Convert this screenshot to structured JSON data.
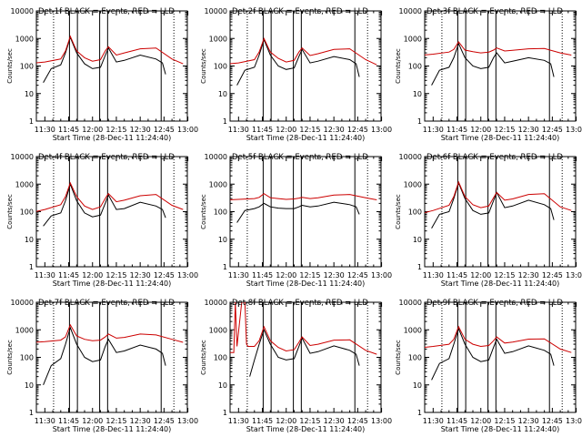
{
  "chart_data": [
    {
      "type": "line",
      "title": "Det 1f BLACK =,Events, RED = LLD",
      "xlabel": "Start Time (28-Dec-11 11:24:40)",
      "ylabel": "Counts/sec",
      "y_scale": "log",
      "ylim": [
        1,
        10000
      ],
      "x_ticks": [
        "11:30",
        "11:45",
        "12:00",
        "12:15",
        "12:30",
        "12:45",
        "13:00"
      ],
      "y_ticks": [
        "1",
        "10",
        "100",
        "1000",
        "10000"
      ],
      "series": [
        {
          "name": "Events",
          "color": "#000000",
          "x": [
            "11:29",
            "11:34",
            "11:40",
            "11:43",
            "11:46",
            "11:50",
            "11:55",
            "12:00",
            "12:05",
            "12:08",
            "12:10",
            "12:15",
            "12:20",
            "12:30",
            "12:40",
            "12:44",
            "12:46"
          ],
          "values": [
            25,
            80,
            110,
            300,
            1100,
            300,
            120,
            80,
            90,
            240,
            450,
            140,
            160,
            250,
            180,
            130,
            50
          ]
        },
        {
          "name": "LLD",
          "color": "#cc0000",
          "x": [
            "11:24",
            "11:30",
            "11:40",
            "11:43",
            "11:46",
            "11:50",
            "11:55",
            "12:00",
            "12:05",
            "12:08",
            "12:10",
            "12:15",
            "12:20",
            "12:30",
            "12:40",
            "12:50",
            "12:57"
          ],
          "values": [
            130,
            140,
            180,
            350,
            1200,
            350,
            200,
            150,
            170,
            350,
            500,
            250,
            300,
            420,
            450,
            180,
            120
          ]
        }
      ]
    },
    {
      "type": "line",
      "title": "Det 2f BLACK =,Events, RED = LLD",
      "xlabel": "Start Time (28-Dec-11 11:24:40)",
      "ylabel": "Counts/sec",
      "y_scale": "log",
      "ylim": [
        1,
        10000
      ],
      "x_ticks": [
        "11:30",
        "11:45",
        "12:00",
        "12:15",
        "12:30",
        "12:45",
        "13:00"
      ],
      "y_ticks": [
        "1",
        "10",
        "100",
        "1000",
        "10000"
      ],
      "series": [
        {
          "name": "Events",
          "color": "#000000",
          "x": [
            "11:29",
            "11:34",
            "11:40",
            "11:43",
            "11:46",
            "11:50",
            "11:55",
            "12:00",
            "12:05",
            "12:08",
            "12:10",
            "12:15",
            "12:20",
            "12:30",
            "12:40",
            "12:44",
            "12:46"
          ],
          "values": [
            20,
            70,
            90,
            250,
            900,
            250,
            100,
            75,
            85,
            220,
            400,
            130,
            150,
            220,
            170,
            120,
            40
          ]
        },
        {
          "name": "LLD",
          "color": "#cc0000",
          "x": [
            "11:24",
            "11:30",
            "11:40",
            "11:43",
            "11:46",
            "11:50",
            "11:55",
            "12:00",
            "12:05",
            "12:08",
            "12:10",
            "12:15",
            "12:20",
            "12:30",
            "12:40",
            "12:50",
            "12:57"
          ],
          "values": [
            120,
            130,
            170,
            320,
            1000,
            320,
            190,
            140,
            160,
            320,
            450,
            240,
            280,
            400,
            420,
            170,
            110
          ]
        }
      ]
    },
    {
      "type": "line",
      "title": "Det 3f BLACK =,Events, RED = LLD",
      "xlabel": "Start Time (28-Dec-11 11:24:40)",
      "ylabel": "Counts/sec",
      "y_scale": "log",
      "ylim": [
        1,
        10000
      ],
      "x_ticks": [
        "11:30",
        "11:45",
        "12:00",
        "12:15",
        "12:30",
        "12:45",
        "13:00"
      ],
      "y_ticks": [
        "1",
        "10",
        "100",
        "1000",
        "10000"
      ],
      "series": [
        {
          "name": "Events",
          "color": "#000000",
          "x": [
            "11:29",
            "11:34",
            "11:40",
            "11:43",
            "11:46",
            "11:50",
            "11:55",
            "12:00",
            "12:05",
            "12:08",
            "12:10",
            "12:15",
            "12:20",
            "12:30",
            "12:40",
            "12:44",
            "12:46"
          ],
          "values": [
            20,
            70,
            90,
            200,
            650,
            200,
            100,
            80,
            90,
            200,
            300,
            130,
            150,
            200,
            160,
            120,
            40
          ]
        },
        {
          "name": "LLD",
          "color": "#cc0000",
          "x": [
            "11:24",
            "11:30",
            "11:40",
            "11:43",
            "11:46",
            "11:50",
            "11:55",
            "12:00",
            "12:05",
            "12:08",
            "12:10",
            "12:15",
            "12:20",
            "12:30",
            "12:40",
            "12:50",
            "12:57"
          ],
          "values": [
            250,
            270,
            320,
            400,
            750,
            380,
            330,
            300,
            320,
            380,
            450,
            350,
            370,
            420,
            430,
            300,
            250
          ]
        }
      ]
    },
    {
      "type": "line",
      "title": "Det 4f BLACK =,Events, RED = LLD",
      "xlabel": "Start Time (28-Dec-11 11:24:40)",
      "ylabel": "Counts/sec",
      "y_scale": "log",
      "ylim": [
        1,
        10000
      ],
      "x_ticks": [
        "11:30",
        "11:45",
        "12:00",
        "12:15",
        "12:30",
        "12:45",
        "13:00"
      ],
      "y_ticks": [
        "1",
        "10",
        "100",
        "1000",
        "10000"
      ],
      "series": [
        {
          "name": "Events",
          "color": "#000000",
          "x": [
            "11:29",
            "11:34",
            "11:40",
            "11:43",
            "11:46",
            "11:50",
            "11:55",
            "12:00",
            "12:05",
            "12:08",
            "12:10",
            "12:15",
            "12:20",
            "12:30",
            "12:40",
            "12:44",
            "12:46"
          ],
          "values": [
            30,
            70,
            90,
            250,
            1000,
            250,
            90,
            65,
            75,
            200,
            400,
            120,
            130,
            220,
            160,
            120,
            60
          ]
        },
        {
          "name": "LLD",
          "color": "#cc0000",
          "x": [
            "11:24",
            "11:30",
            "11:40",
            "11:43",
            "11:46",
            "11:50",
            "11:55",
            "12:00",
            "12:05",
            "12:08",
            "12:10",
            "12:15",
            "12:20",
            "12:30",
            "12:40",
            "12:50",
            "12:57"
          ],
          "values": [
            100,
            120,
            180,
            350,
            1100,
            350,
            160,
            120,
            150,
            300,
            450,
            230,
            260,
            380,
            420,
            170,
            120
          ]
        }
      ]
    },
    {
      "type": "line",
      "title": "Det 5f BLACK =,Events, RED = LLD",
      "xlabel": "Start Time (28-Dec-11 11:24:40)",
      "ylabel": "Counts/sec",
      "y_scale": "log",
      "ylim": [
        1,
        10000
      ],
      "x_ticks": [
        "11:30",
        "11:45",
        "12:00",
        "12:15",
        "12:30",
        "12:45",
        "13:00"
      ],
      "y_ticks": [
        "1",
        "10",
        "100",
        "1000",
        "10000"
      ],
      "series": [
        {
          "name": "Events",
          "color": "#000000",
          "x": [
            "11:29",
            "11:34",
            "11:40",
            "11:43",
            "11:46",
            "11:50",
            "11:55",
            "12:00",
            "12:05",
            "12:08",
            "12:10",
            "12:15",
            "12:20",
            "12:30",
            "12:40",
            "12:44",
            "12:46"
          ],
          "values": [
            40,
            110,
            130,
            150,
            200,
            150,
            135,
            130,
            130,
            150,
            170,
            150,
            160,
            220,
            180,
            150,
            80
          ]
        },
        {
          "name": "LLD",
          "color": "#cc0000",
          "x": [
            "11:24",
            "11:30",
            "11:40",
            "11:43",
            "11:46",
            "11:50",
            "11:55",
            "12:00",
            "12:05",
            "12:08",
            "12:10",
            "12:15",
            "12:20",
            "12:30",
            "12:40",
            "12:50",
            "12:57"
          ],
          "values": [
            270,
            280,
            300,
            330,
            450,
            320,
            300,
            280,
            290,
            310,
            330,
            300,
            320,
            400,
            420,
            320,
            270
          ]
        }
      ]
    },
    {
      "type": "line",
      "title": "Det 6f BLACK =,Events, RED = LLD",
      "xlabel": "Start Time (28-Dec-11 11:24:40)",
      "ylabel": "Counts/sec",
      "y_scale": "log",
      "ylim": [
        1,
        10000
      ],
      "x_ticks": [
        "11:30",
        "11:45",
        "12:00",
        "12:15",
        "12:30",
        "12:45",
        "13:00"
      ],
      "y_ticks": [
        "1",
        "10",
        "100",
        "1000",
        "10000"
      ],
      "series": [
        {
          "name": "Events",
          "color": "#000000",
          "x": [
            "11:29",
            "11:34",
            "11:40",
            "11:43",
            "11:46",
            "11:50",
            "11:55",
            "12:00",
            "12:05",
            "12:08",
            "12:10",
            "12:15",
            "12:20",
            "12:30",
            "12:40",
            "12:44",
            "12:46"
          ],
          "values": [
            25,
            80,
            100,
            300,
            1100,
            300,
            110,
            80,
            90,
            250,
            500,
            140,
            160,
            260,
            180,
            130,
            50
          ]
        },
        {
          "name": "LLD",
          "color": "#cc0000",
          "x": [
            "11:24",
            "11:30",
            "11:40",
            "11:43",
            "11:46",
            "11:50",
            "11:55",
            "12:00",
            "12:05",
            "12:08",
            "12:10",
            "12:15",
            "12:20",
            "12:30",
            "12:40",
            "12:50",
            "12:57"
          ],
          "values": [
            90,
            110,
            170,
            350,
            1200,
            350,
            180,
            140,
            160,
            320,
            500,
            260,
            290,
            420,
            450,
            150,
            110
          ]
        }
      ]
    },
    {
      "type": "line",
      "title": "Det 7f BLACK =,Events, RED = LLD",
      "xlabel": "Start Time (28-Dec-11 11:24:40)",
      "ylabel": "Counts/sec",
      "y_scale": "log",
      "ylim": [
        1,
        10000
      ],
      "x_ticks": [
        "11:30",
        "11:45",
        "12:00",
        "12:15",
        "12:30",
        "12:45",
        "13:00"
      ],
      "y_ticks": [
        "1",
        "10",
        "100",
        "1000",
        "10000"
      ],
      "series": [
        {
          "name": "Events",
          "color": "#000000",
          "x": [
            "11:29",
            "11:34",
            "11:40",
            "11:43",
            "11:46",
            "11:50",
            "11:55",
            "12:00",
            "12:05",
            "12:08",
            "12:10",
            "12:15",
            "12:20",
            "12:30",
            "12:40",
            "12:44",
            "12:46"
          ],
          "values": [
            10,
            50,
            90,
            300,
            1200,
            300,
            100,
            70,
            80,
            250,
            450,
            150,
            170,
            280,
            200,
            140,
            50
          ]
        },
        {
          "name": "LLD",
          "color": "#cc0000",
          "x": [
            "11:24",
            "11:30",
            "11:40",
            "11:43",
            "11:46",
            "11:50",
            "11:55",
            "12:00",
            "12:05",
            "12:08",
            "12:10",
            "12:15",
            "12:20",
            "12:30",
            "12:40",
            "12:50",
            "12:57"
          ],
          "values": [
            350,
            370,
            420,
            550,
            1500,
            600,
            450,
            400,
            420,
            550,
            700,
            500,
            530,
            700,
            650,
            450,
            350
          ]
        }
      ]
    },
    {
      "type": "line",
      "title": "Det 8f BLACK =,Events, RED = LLD",
      "xlabel": "Start Time (28-Dec-11 11:24:40)",
      "ylabel": "Counts/sec",
      "y_scale": "log",
      "ylim": [
        1,
        10000
      ],
      "x_ticks": [
        "11:30",
        "11:45",
        "12:00",
        "12:15",
        "12:30",
        "12:45",
        "13:00"
      ],
      "y_ticks": [
        "1",
        "10",
        "100",
        "1000",
        "10000"
      ],
      "series": [
        {
          "name": "Events",
          "color": "#000000",
          "x": [
            "11:37",
            "11:40",
            "11:43",
            "11:46",
            "11:50",
            "11:55",
            "12:00",
            "12:05",
            "12:08",
            "12:10",
            "12:15",
            "12:20",
            "12:30",
            "12:40",
            "12:44",
            "12:46"
          ],
          "values": [
            20,
            80,
            300,
            1000,
            300,
            100,
            80,
            90,
            250,
            500,
            140,
            160,
            260,
            180,
            130,
            50
          ]
        },
        {
          "name": "LLD",
          "color": "#cc0000",
          "x": [
            "11:24",
            "11:27",
            "11:28",
            "11:29",
            "11:32",
            "11:34",
            "11:35",
            "11:36",
            "11:40",
            "11:43",
            "11:46",
            "11:50",
            "11:55",
            "12:00",
            "12:05",
            "12:08",
            "12:10",
            "12:15",
            "12:20",
            "12:30",
            "12:40",
            "12:50",
            "12:57"
          ],
          "values": [
            150,
            150,
            10000,
            250,
            10000,
            10000,
            300,
            250,
            250,
            400,
            1300,
            400,
            230,
            170,
            190,
            350,
            550,
            270,
            300,
            420,
            430,
            180,
            130
          ]
        }
      ]
    },
    {
      "type": "line",
      "title": "Det 9f BLACK =,Events, RED = LLD",
      "xlabel": "Start Time (28-Dec-11 11:24:40)",
      "ylabel": "Counts/sec",
      "y_scale": "log",
      "ylim": [
        1,
        10000
      ],
      "x_ticks": [
        "11:30",
        "11:45",
        "12:00",
        "12:15",
        "12:30",
        "12:45",
        "13:00"
      ],
      "y_ticks": [
        "1",
        "10",
        "100",
        "1000",
        "10000"
      ],
      "series": [
        {
          "name": "Events",
          "color": "#000000",
          "x": [
            "11:29",
            "11:34",
            "11:40",
            "11:43",
            "11:46",
            "11:50",
            "11:55",
            "12:00",
            "12:05",
            "12:08",
            "12:10",
            "12:15",
            "12:20",
            "12:30",
            "12:40",
            "12:44",
            "12:46"
          ],
          "values": [
            15,
            60,
            90,
            300,
            1100,
            300,
            100,
            70,
            80,
            230,
            450,
            140,
            160,
            260,
            180,
            130,
            50
          ]
        },
        {
          "name": "LLD",
          "color": "#cc0000",
          "x": [
            "11:24",
            "11:30",
            "11:40",
            "11:43",
            "11:46",
            "11:50",
            "11:55",
            "12:00",
            "12:05",
            "12:08",
            "12:10",
            "12:15",
            "12:20",
            "12:30",
            "12:40",
            "12:50",
            "12:57"
          ],
          "values": [
            230,
            250,
            300,
            450,
            1300,
            450,
            300,
            250,
            270,
            400,
            550,
            330,
            360,
            460,
            470,
            200,
            150
          ]
        }
      ]
    }
  ]
}
